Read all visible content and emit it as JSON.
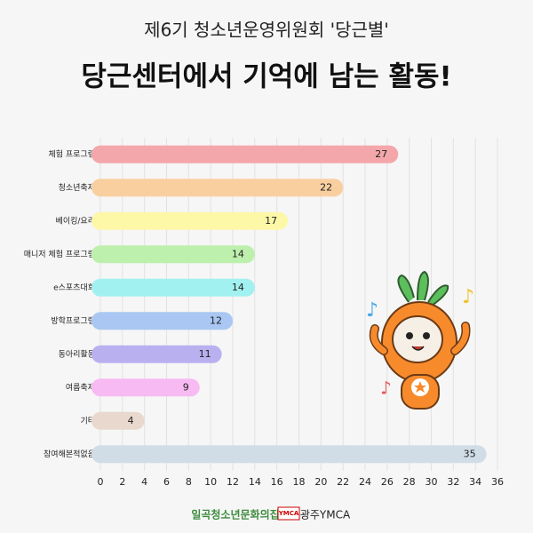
{
  "chart_data": {
    "type": "barh",
    "subtitle": "제6기 청소년운영위원회 '당근별'",
    "title": "당근센터에서 기억에 남는 활동!",
    "categories": [
      "체험 프로그램",
      "청소년축제",
      "베이킹/요리",
      "매니저 체험 프로그램",
      "e스포츠대회",
      "방학프로그램",
      "동아리활동",
      "여름축제",
      "기타",
      "참여해본적없음"
    ],
    "values": [
      27,
      22,
      17,
      14,
      14,
      12,
      11,
      9,
      4,
      35
    ],
    "colors": [
      "#f4a7aa",
      "#f9cfa0",
      "#fdf7a8",
      "#bdf0ad",
      "#a2f1f1",
      "#a9c7f2",
      "#b9b0f0",
      "#f8baf3",
      "#e8d8cd",
      "#d0dde7"
    ],
    "xlim": [
      0,
      36
    ],
    "xticks": [
      0,
      2,
      4,
      6,
      8,
      10,
      12,
      14,
      16,
      18,
      20,
      22,
      24,
      26,
      28,
      30,
      32,
      34,
      36
    ],
    "grid": true
  },
  "footer": [
    "일곡청소년문화의집",
    "YMCA",
    "광주YMCA"
  ]
}
